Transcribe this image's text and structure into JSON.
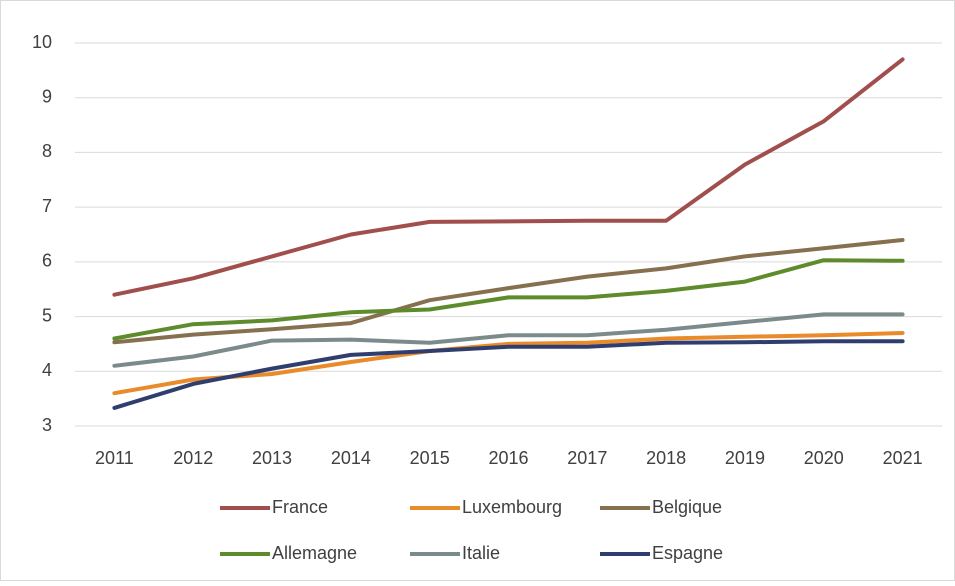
{
  "chart_data": {
    "type": "line",
    "categories": [
      "2011",
      "2012",
      "2013",
      "2014",
      "2015",
      "2016",
      "2017",
      "2018",
      "2019",
      "2020",
      "2021"
    ],
    "series": [
      {
        "name": "France",
        "color": "#a14f4d",
        "values": [
          5.4,
          5.7,
          6.1,
          6.5,
          6.73,
          6.74,
          6.75,
          6.75,
          7.78,
          8.57,
          9.7
        ]
      },
      {
        "name": "Luxembourg",
        "color": "#e98b2a",
        "values": [
          3.6,
          3.85,
          3.95,
          4.17,
          4.37,
          4.5,
          4.52,
          4.6,
          4.63,
          4.66,
          4.7
        ]
      },
      {
        "name": "Belgique",
        "color": "#86704f",
        "values": [
          4.53,
          4.67,
          4.77,
          4.88,
          5.3,
          5.52,
          5.73,
          5.88,
          6.1,
          6.25,
          6.4
        ]
      },
      {
        "name": "Allemagne",
        "color": "#5e8c2c",
        "values": [
          4.6,
          4.86,
          4.93,
          5.08,
          5.13,
          5.35,
          5.35,
          5.47,
          5.64,
          6.03,
          6.02
        ]
      },
      {
        "name": "Italie",
        "color": "#7b8b8b",
        "values": [
          4.1,
          4.27,
          4.56,
          4.58,
          4.52,
          4.66,
          4.66,
          4.76,
          4.9,
          5.04,
          5.04
        ]
      },
      {
        "name": "Espagne",
        "color": "#2f3e6e",
        "values": [
          3.33,
          3.77,
          4.05,
          4.3,
          4.37,
          4.45,
          4.45,
          4.52,
          4.53,
          4.55,
          4.55
        ]
      }
    ],
    "ylim": [
      3,
      10
    ],
    "yticks": [
      3,
      4,
      5,
      6,
      7,
      8,
      9,
      10
    ],
    "grid": true,
    "legend": "bottom"
  }
}
